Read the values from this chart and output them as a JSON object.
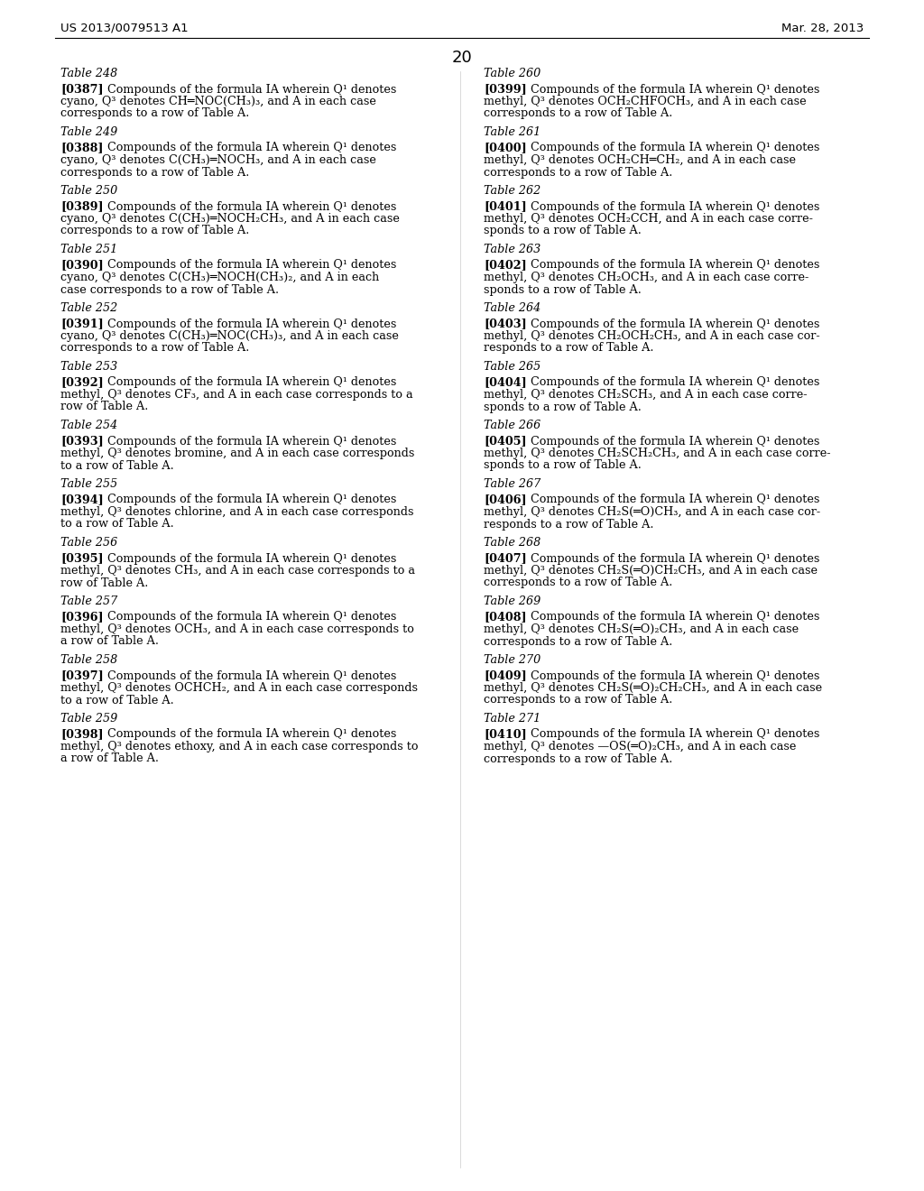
{
  "header_left": "US 2013/0079513 A1",
  "header_right": "Mar. 28, 2013",
  "page_number": "20",
  "background_color": "#ffffff",
  "left_column": [
    {
      "table": "Table 248",
      "ref": "[0387]",
      "lines": [
        "Compounds of the formula IA wherein Q¹ denotes",
        "cyano, Q³ denotes CH═NOC(CH₃)₃, and A in each case",
        "corresponds to a row of Table A."
      ]
    },
    {
      "table": "Table 249",
      "ref": "[0388]",
      "lines": [
        "Compounds of the formula IA wherein Q¹ denotes",
        "cyano, Q³ denotes C(CH₃)═NOCH₃, and A in each case",
        "corresponds to a row of Table A."
      ]
    },
    {
      "table": "Table 250",
      "ref": "[0389]",
      "lines": [
        "Compounds of the formula IA wherein Q¹ denotes",
        "cyano, Q³ denotes C(CH₃)═NOCH₂CH₃, and A in each case",
        "corresponds to a row of Table A."
      ]
    },
    {
      "table": "Table 251",
      "ref": "[0390]",
      "lines": [
        "Compounds of the formula IA wherein Q¹ denotes",
        "cyano, Q³ denotes C(CH₃)═NOCH(CH₃)₂, and A in each",
        "case corresponds to a row of Table A."
      ]
    },
    {
      "table": "Table 252",
      "ref": "[0391]",
      "lines": [
        "Compounds of the formula IA wherein Q¹ denotes",
        "cyano, Q³ denotes C(CH₃)═NOC(CH₃)₃, and A in each case",
        "corresponds to a row of Table A."
      ]
    },
    {
      "table": "Table 253",
      "ref": "[0392]",
      "lines": [
        "Compounds of the formula IA wherein Q¹ denotes",
        "methyl, Q³ denotes CF₃, and A in each case corresponds to a",
        "row of Table A."
      ]
    },
    {
      "table": "Table 254",
      "ref": "[0393]",
      "lines": [
        "Compounds of the formula IA wherein Q¹ denotes",
        "methyl, Q³ denotes bromine, and A in each case corresponds",
        "to a row of Table A."
      ]
    },
    {
      "table": "Table 255",
      "ref": "[0394]",
      "lines": [
        "Compounds of the formula IA wherein Q¹ denotes",
        "methyl, Q³ denotes chlorine, and A in each case corresponds",
        "to a row of Table A."
      ]
    },
    {
      "table": "Table 256",
      "ref": "[0395]",
      "lines": [
        "Compounds of the formula IA wherein Q¹ denotes",
        "methyl, Q³ denotes CH₃, and A in each case corresponds to a",
        "row of Table A."
      ]
    },
    {
      "table": "Table 257",
      "ref": "[0396]",
      "lines": [
        "Compounds of the formula IA wherein Q¹ denotes",
        "methyl, Q³ denotes OCH₃, and A in each case corresponds to",
        "a row of Table A."
      ]
    },
    {
      "table": "Table 258",
      "ref": "[0397]",
      "lines": [
        "Compounds of the formula IA wherein Q¹ denotes",
        "methyl, Q³ denotes OCHCH₂, and A in each case corresponds",
        "to a row of Table A."
      ]
    },
    {
      "table": "Table 259",
      "ref": "[0398]",
      "lines": [
        "Compounds of the formula IA wherein Q¹ denotes",
        "methyl, Q³ denotes ethoxy, and A in each case corresponds to",
        "a row of Table A."
      ]
    }
  ],
  "right_column": [
    {
      "table": "Table 260",
      "ref": "[0399]",
      "lines": [
        "Compounds of the formula IA wherein Q¹ denotes",
        "methyl, Q³ denotes OCH₂CHFOCH₃, and A in each case",
        "corresponds to a row of Table A."
      ]
    },
    {
      "table": "Table 261",
      "ref": "[0400]",
      "lines": [
        "Compounds of the formula IA wherein Q¹ denotes",
        "methyl, Q³ denotes OCH₂CH═CH₂, and A in each case",
        "corresponds to a row of Table A."
      ]
    },
    {
      "table": "Table 262",
      "ref": "[0401]",
      "lines": [
        "Compounds of the formula IA wherein Q¹ denotes",
        "methyl, Q³ denotes OCH₂CCH, and A in each case corre-",
        "sponds to a row of Table A."
      ]
    },
    {
      "table": "Table 263",
      "ref": "[0402]",
      "lines": [
        "Compounds of the formula IA wherein Q¹ denotes",
        "methyl, Q³ denotes CH₂OCH₃, and A in each case corre-",
        "sponds to a row of Table A."
      ]
    },
    {
      "table": "Table 264",
      "ref": "[0403]",
      "lines": [
        "Compounds of the formula IA wherein Q¹ denotes",
        "methyl, Q³ denotes CH₂OCH₂CH₃, and A in each case cor-",
        "responds to a row of Table A."
      ]
    },
    {
      "table": "Table 265",
      "ref": "[0404]",
      "lines": [
        "Compounds of the formula IA wherein Q¹ denotes",
        "methyl, Q³ denotes CH₂SCH₃, and A in each case corre-",
        "sponds to a row of Table A."
      ]
    },
    {
      "table": "Table 266",
      "ref": "[0405]",
      "lines": [
        "Compounds of the formula IA wherein Q¹ denotes",
        "methyl, Q³ denotes CH₂SCH₂CH₃, and A in each case corre-",
        "sponds to a row of Table A."
      ]
    },
    {
      "table": "Table 267",
      "ref": "[0406]",
      "lines": [
        "Compounds of the formula IA wherein Q¹ denotes",
        "methyl, Q³ denotes CH₂S(═O)CH₃, and A in each case cor-",
        "responds to a row of Table A."
      ]
    },
    {
      "table": "Table 268",
      "ref": "[0407]",
      "lines": [
        "Compounds of the formula IA wherein Q¹ denotes",
        "methyl, Q³ denotes CH₂S(═O)CH₂CH₃, and A in each case",
        "corresponds to a row of Table A."
      ]
    },
    {
      "table": "Table 269",
      "ref": "[0408]",
      "lines": [
        "Compounds of the formula IA wherein Q¹ denotes",
        "methyl, Q³ denotes CH₂S(═O)₂CH₃, and A in each case",
        "corresponds to a row of Table A."
      ]
    },
    {
      "table": "Table 270",
      "ref": "[0409]",
      "lines": [
        "Compounds of the formula IA wherein Q¹ denotes",
        "methyl, Q³ denotes CH₂S(═O)₂CH₂CH₃, and A in each case",
        "corresponds to a row of Table A."
      ]
    },
    {
      "table": "Table 271",
      "ref": "[0410]",
      "lines": [
        "Compounds of the formula IA wherein Q¹ denotes",
        "methyl, Q³ denotes —OS(═O)₂CH₃, and A in each case",
        "corresponds to a row of Table A."
      ]
    }
  ]
}
